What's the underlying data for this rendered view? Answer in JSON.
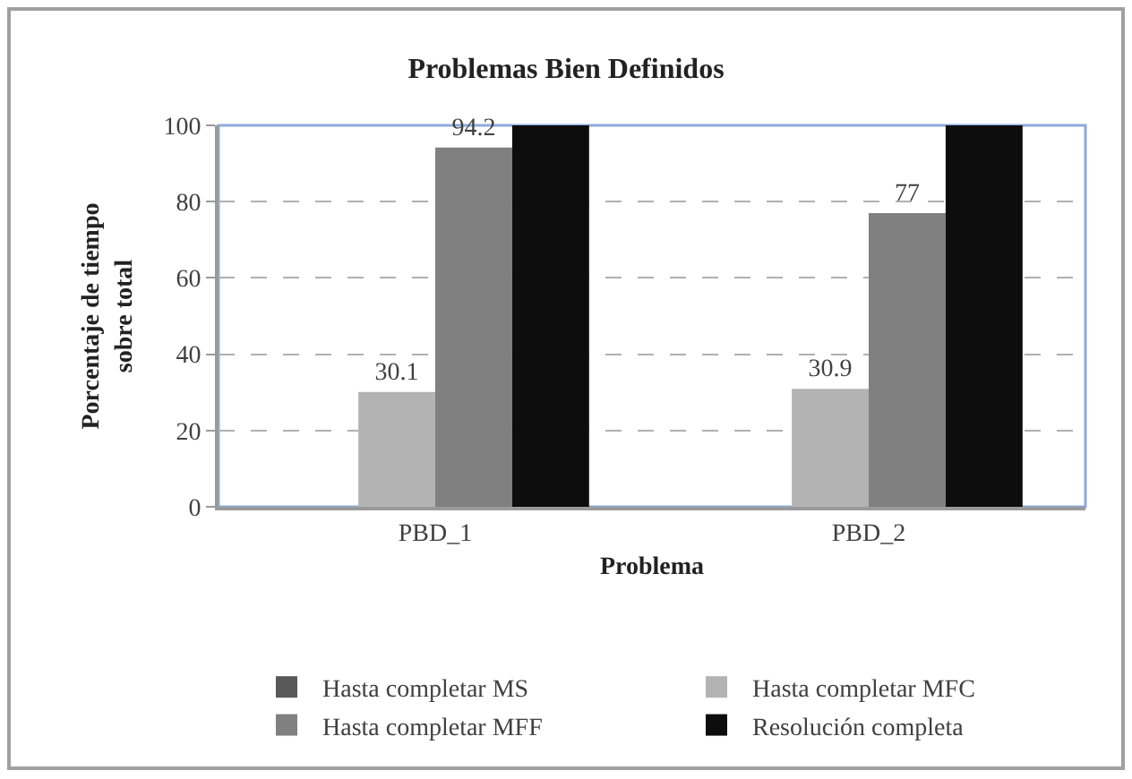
{
  "chart_data": {
    "type": "bar",
    "title": "Problemas Bien Definidos",
    "xlabel": "Problema",
    "ylabel": "Porcentaje de tiempo\nsobre total",
    "categories": [
      "PBD_1",
      "PBD_2"
    ],
    "series": [
      {
        "name": "Hasta completar MS",
        "color": "#595959",
        "values": [
          null,
          null
        ]
      },
      {
        "name": "Hasta completar MFC",
        "color": "#b3b3b3",
        "values": [
          30.1,
          30.9
        ],
        "value_labels": [
          "30.1",
          "30.9"
        ]
      },
      {
        "name": "Hasta completar MFF",
        "color": "#808080",
        "values": [
          94.2,
          77
        ],
        "value_labels": [
          "94.2",
          "77"
        ]
      },
      {
        "name": "Resolución completa",
        "color": "#0d0d0d",
        "values": [
          100,
          100
        ]
      }
    ],
    "ylim": [
      0,
      100
    ],
    "yticks": [
      0,
      20,
      40,
      60,
      80,
      100
    ],
    "grid": "y",
    "legend": "bottom"
  }
}
